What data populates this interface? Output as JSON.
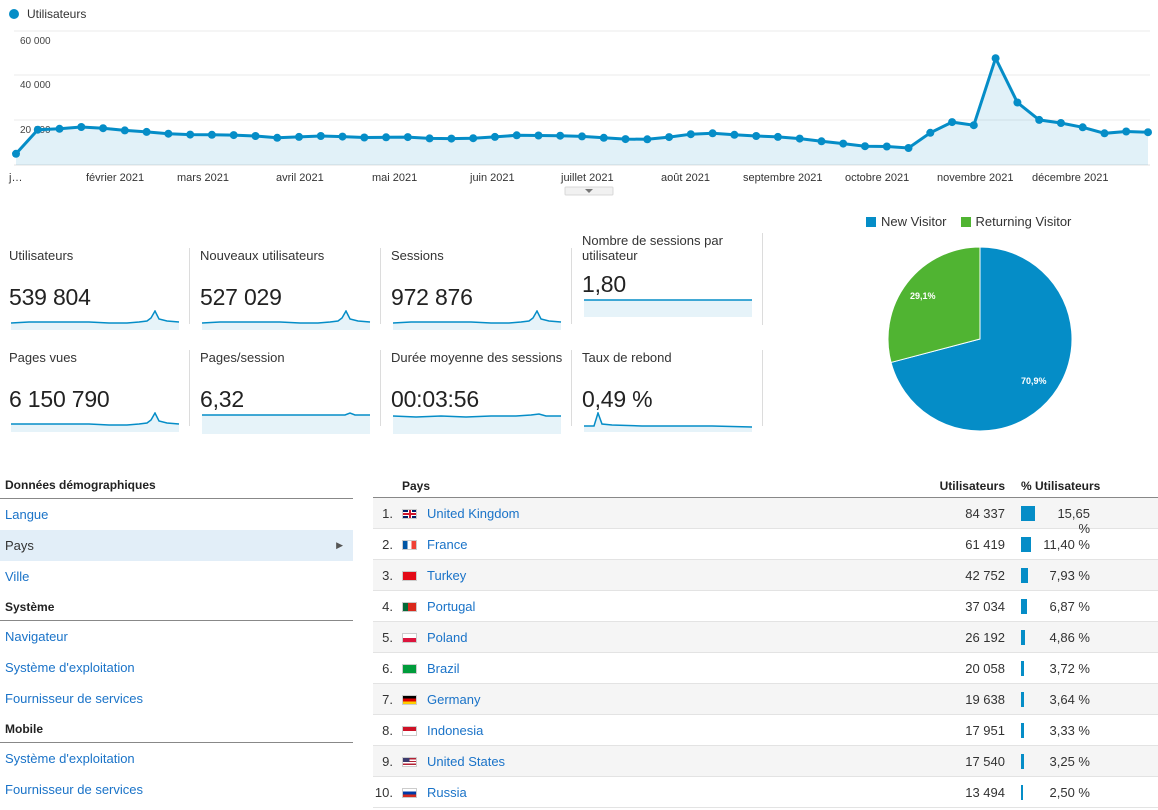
{
  "overview": {
    "legend": "Utilisateurs",
    "color": "#058dc7",
    "y_ticks": [
      "60 000",
      "40 000",
      "20 000"
    ],
    "x_labels": [
      "j…",
      "février 2021",
      "mars 2021",
      "avril 2021",
      "mai 2021",
      "juin 2021",
      "juillet 2021",
      "août 2021",
      "septembre 2021",
      "octobre 2021",
      "novembre 2021",
      "décembre 2021"
    ]
  },
  "chart_data": {
    "type": "line",
    "series": [
      {
        "name": "Utilisateurs",
        "values": [
          5000,
          15800,
          16200,
          17000,
          16500,
          15500,
          14800,
          14000,
          13600,
          13500,
          13400,
          13000,
          12200,
          12600,
          13000,
          12700,
          12300,
          12400,
          12500,
          11900,
          11800,
          12000,
          12600,
          13300,
          13200,
          13100,
          12800,
          12200,
          11600,
          11500,
          12500,
          13800,
          14200,
          13500,
          13000,
          12600,
          11800,
          10600,
          9600,
          8400,
          8300,
          7600,
          14400,
          19200,
          17800,
          47800,
          28000,
          20200,
          18800,
          16900,
          14200,
          15000,
          14700
        ],
        "ylim": [
          0,
          60000
        ]
      }
    ],
    "grid": true
  },
  "metrics": [
    {
      "label": "Utilisateurs",
      "value": "539 804"
    },
    {
      "label": "Nouveaux utilisateurs",
      "value": "527 029"
    },
    {
      "label": "Sessions",
      "value": "972 876"
    },
    {
      "label": "Nombre de sessions par utilisateur",
      "value": "1,80"
    },
    {
      "label": "Pages vues",
      "value": "6 150 790"
    },
    {
      "label": "Pages/session",
      "value": "6,32"
    },
    {
      "label": "Durée moyenne des sessions",
      "value": "00:03:56"
    },
    {
      "label": "Taux de rebond",
      "value": "0,49 %"
    }
  ],
  "pie": {
    "legend": [
      {
        "label": "New Visitor",
        "color": "#058dc7"
      },
      {
        "label": "Returning Visitor",
        "color": "#50b432"
      }
    ],
    "slices": [
      {
        "label": "70,9%",
        "value": 70.9
      },
      {
        "label": "29,1%",
        "value": 29.1
      }
    ]
  },
  "nav": {
    "demo_title": "Données démographiques",
    "demo_items": [
      "Langue",
      "Pays",
      "Ville"
    ],
    "system_title": "Système",
    "system_items": [
      "Navigateur",
      "Système d'exploitation",
      "Fournisseur de services"
    ],
    "mobile_title": "Mobile",
    "mobile_items": [
      "Système d'exploitation",
      "Fournisseur de services"
    ]
  },
  "table": {
    "col_country": "Pays",
    "col_users": "Utilisateurs",
    "col_pct": "% Utilisateurs",
    "rows": [
      {
        "rank": "1.",
        "country": "United Kingdom",
        "users": "84 337",
        "pct": "15,65 %",
        "share": 15.65
      },
      {
        "rank": "2.",
        "country": "France",
        "users": "61 419",
        "pct": "11,40 %",
        "share": 11.4
      },
      {
        "rank": "3.",
        "country": "Turkey",
        "users": "42 752",
        "pct": "7,93 %",
        "share": 7.93
      },
      {
        "rank": "4.",
        "country": "Portugal",
        "users": "37 034",
        "pct": "6,87 %",
        "share": 6.87
      },
      {
        "rank": "5.",
        "country": "Poland",
        "users": "26 192",
        "pct": "4,86 %",
        "share": 4.86
      },
      {
        "rank": "6.",
        "country": "Brazil",
        "users": "20 058",
        "pct": "3,72 %",
        "share": 3.72
      },
      {
        "rank": "7.",
        "country": "Germany",
        "users": "19 638",
        "pct": "3,64 %",
        "share": 3.64
      },
      {
        "rank": "8.",
        "country": "Indonesia",
        "users": "17 951",
        "pct": "3,33 %",
        "share": 3.33
      },
      {
        "rank": "9.",
        "country": "United States",
        "users": "17 540",
        "pct": "3,25 %",
        "share": 3.25
      },
      {
        "rank": "10.",
        "country": "Russia",
        "users": "13 494",
        "pct": "2,50 %",
        "share": 2.5
      }
    ]
  }
}
